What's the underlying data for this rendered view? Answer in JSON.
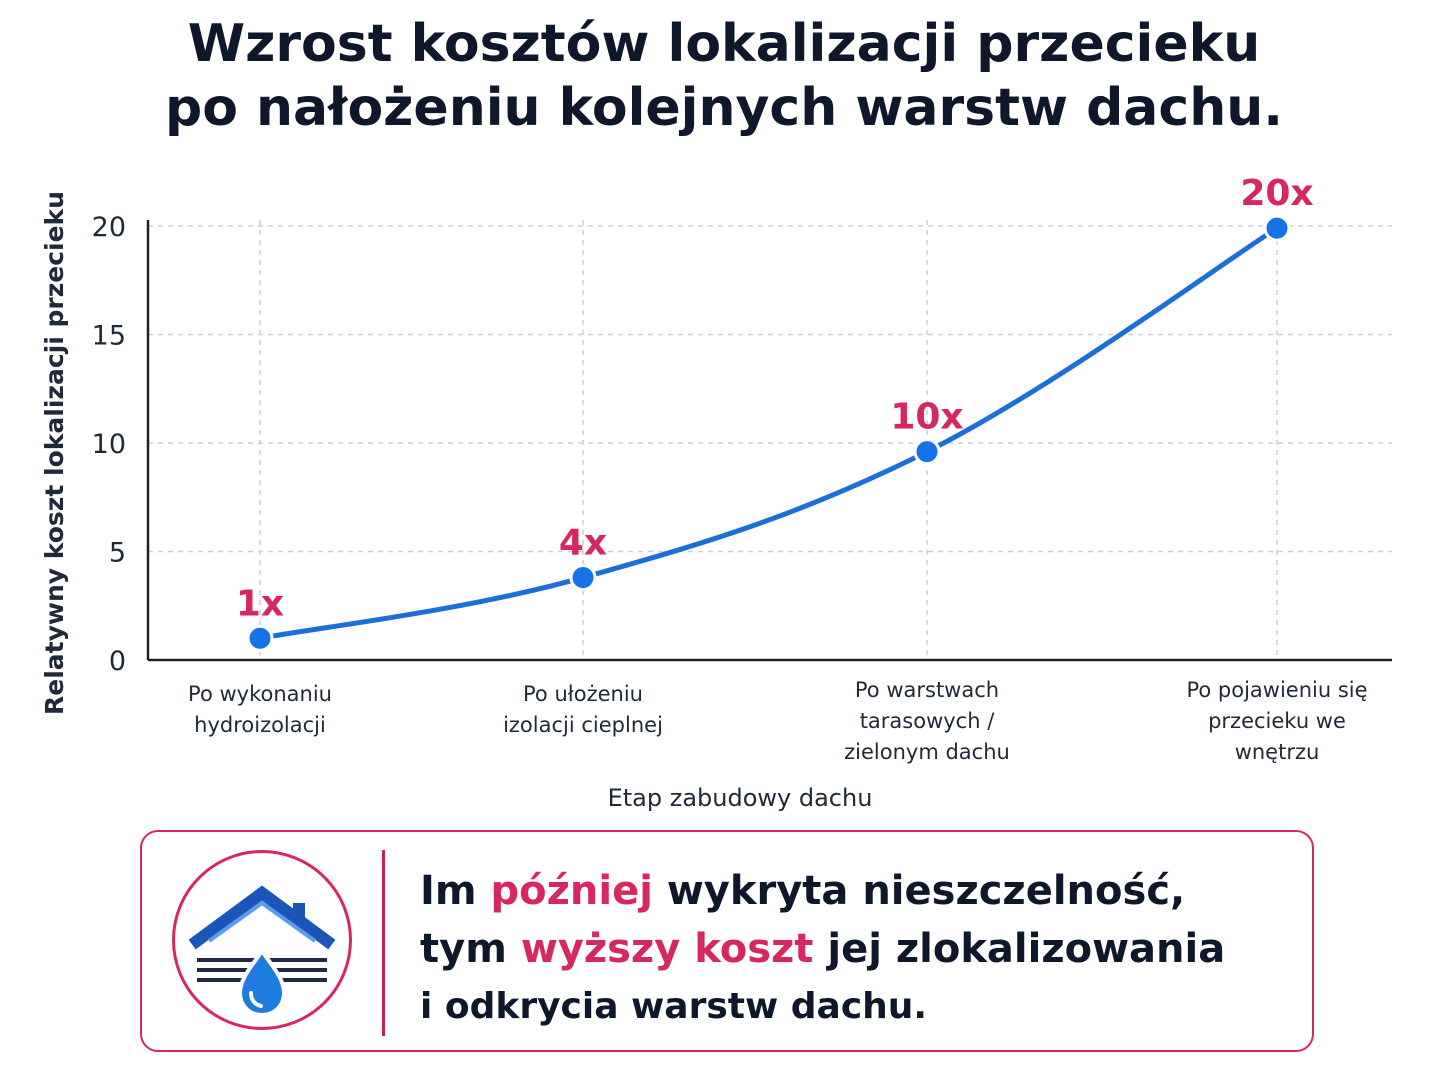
{
  "title": {
    "line1": "Wzrost kosztów lokalizacji przecieku",
    "line2": "po nałożeniu kolejnych warstw dachu."
  },
  "colors": {
    "line": "#1d6fd8",
    "point": "#1473e6",
    "label": "#d6275f",
    "grid": "#cfcfcf",
    "axis": "#222222"
  },
  "chart_data": {
    "type": "line",
    "title": "Wzrost kosztów lokalizacji przecieku po nałożeniu kolejnych warstw dachu.",
    "ylabel": "Relatywny koszt lokalizacji przecieku",
    "xlabel": "Etap zabudowy dachu",
    "ylim": [
      0,
      20
    ],
    "yticks": [
      0,
      5,
      10,
      15,
      20
    ],
    "grid": true,
    "categories": [
      [
        "Po wykonaniu",
        "hydroizolacji"
      ],
      [
        "Po ułożeniu",
        "izolacji cieplnej"
      ],
      [
        "Po warstwach",
        "tarasowych /",
        "zielonym dachu"
      ],
      [
        "Po pojawieniu się",
        "przecieku we",
        "wnętrzu"
      ]
    ],
    "values": [
      1,
      3.8,
      9.6,
      19.9
    ],
    "data_labels": [
      "1x",
      "4x",
      "10x",
      "20x"
    ]
  },
  "callout": {
    "icon": "house-leak-icon",
    "line1_a": "Im ",
    "line1_hl": "później",
    "line1_b": " wykryta nieszczelność,",
    "line2_a": "tym ",
    "line2_hl": "wyższy koszt",
    "line2_b": " jej zlokalizowania",
    "line3": "i odkrycia warstw dachu."
  }
}
